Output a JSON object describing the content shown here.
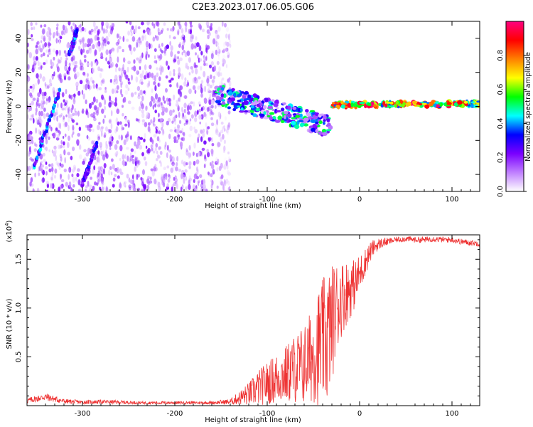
{
  "figure": {
    "title": "C2E3.2023.017.06.05.G06"
  },
  "chart_data": [
    {
      "type": "heatmap",
      "title": "C2E3.2023.017.06.05.G06",
      "xlabel": "Height of straight line (km)",
      "ylabel": "Frequency (Hz)",
      "xlim": [
        -360,
        130
      ],
      "ylim": [
        -50,
        50
      ],
      "xticks": [
        -300,
        -200,
        -100,
        0,
        100
      ],
      "xtick_labels": [
        "-300",
        "-200",
        "-100",
        "0",
        "100"
      ],
      "yticks": [
        -40,
        -20,
        0,
        20,
        40
      ],
      "ytick_labels": [
        "-40",
        "-20",
        "0",
        "20",
        "40"
      ],
      "grid": false,
      "colorbar": {
        "label": "Normalized spectral amplitude",
        "range": [
          0,
          1
        ],
        "ticks": [
          0.0,
          0.2,
          0.4,
          0.6,
          0.8
        ],
        "tick_labels": [
          "0.0",
          "0.2",
          "0.4",
          "0.6",
          "0.8"
        ],
        "colors": [
          "#ffffff",
          "#c080ff",
          "#7a00ff",
          "#0000ff",
          "#00ffff",
          "#00ff00",
          "#ffff00",
          "#ff8000",
          "#ff0000",
          "#ff0080"
        ]
      },
      "features": [
        {
          "kind": "noise",
          "x": [
            -360,
            -155
          ],
          "y": [
            -50,
            50
          ],
          "level": 0.08
        },
        {
          "kind": "sparse-noise",
          "x": [
            -155,
            -140
          ],
          "y": [
            -50,
            50
          ],
          "level": 0.04
        },
        {
          "kind": "line",
          "x": [
            -352,
            -325
          ],
          "y": [
            -35,
            9
          ],
          "level": 0.3
        },
        {
          "kind": "line",
          "x": [
            -314,
            -306
          ],
          "y": [
            30,
            45
          ],
          "level": 0.3
        },
        {
          "kind": "line",
          "x": [
            -300,
            -285
          ],
          "y": [
            -46,
            -22
          ],
          "level": 0.25
        },
        {
          "kind": "band",
          "x": [
            -155,
            -30
          ],
          "y": [
            7,
            -12
          ],
          "level": 0.3
        },
        {
          "kind": "band",
          "x": [
            -30,
            130
          ],
          "y": [
            1,
            1.5
          ],
          "level": 0.7
        }
      ]
    },
    {
      "type": "line",
      "xlabel": "Height of straight line (km)",
      "ylabel": "SNR (10 * v/v)",
      "y_scale_label": "(x10",
      "y_scale_exponent": "4",
      "y_scale_close": ")",
      "xlim": [
        -360,
        130
      ],
      "ylim": [
        0,
        17500
      ],
      "xticks": [
        -300,
        -200,
        -100,
        0,
        100
      ],
      "xtick_labels": [
        "-300",
        "-200",
        "-100",
        "0",
        "100"
      ],
      "yticks": [
        5000,
        10000,
        15000
      ],
      "ytick_labels": [
        "0.5",
        "1.0",
        "1.5"
      ],
      "grid": false,
      "color": "#ee3333",
      "series": [
        {
          "x": [
            -360,
            -340,
            -320,
            -300,
            -280,
            -260,
            -240,
            -220,
            -200,
            -180,
            -160,
            -140,
            -130,
            -120,
            -110,
            -100,
            -90,
            -80,
            -70,
            -60,
            -50,
            -45,
            -40,
            -35,
            -30,
            -25,
            -20,
            -15,
            -10,
            -5,
            0,
            5,
            10,
            15,
            20,
            25,
            30,
            35,
            40,
            50,
            60,
            70,
            80,
            90,
            100,
            110,
            120,
            130
          ],
          "y": [
            500,
            900,
            450,
            350,
            400,
            350,
            300,
            300,
            300,
            300,
            300,
            400,
            800,
            1200,
            1800,
            2300,
            2800,
            3200,
            3800,
            4200,
            5300,
            6000,
            6500,
            7000,
            8500,
            10000,
            11000,
            11500,
            12000,
            12500,
            13500,
            14500,
            15500,
            16200,
            16500,
            16700,
            16800,
            16900,
            17000,
            17100,
            17000,
            17000,
            17100,
            17000,
            17000,
            16800,
            16700,
            16600
          ],
          "noise": [
            300,
            400,
            250,
            200,
            200,
            200,
            150,
            150,
            150,
            150,
            150,
            300,
            700,
            1200,
            1800,
            2200,
            2600,
            3000,
            3600,
            4200,
            5000,
            6000,
            6500,
            7000,
            6000,
            5000,
            4000,
            3500,
            3000,
            2500,
            2000,
            1500,
            1200,
            800,
            600,
            500,
            400,
            300,
            300,
            300,
            300,
            300,
            300,
            300,
            300,
            300,
            300,
            300
          ]
        }
      ]
    }
  ]
}
